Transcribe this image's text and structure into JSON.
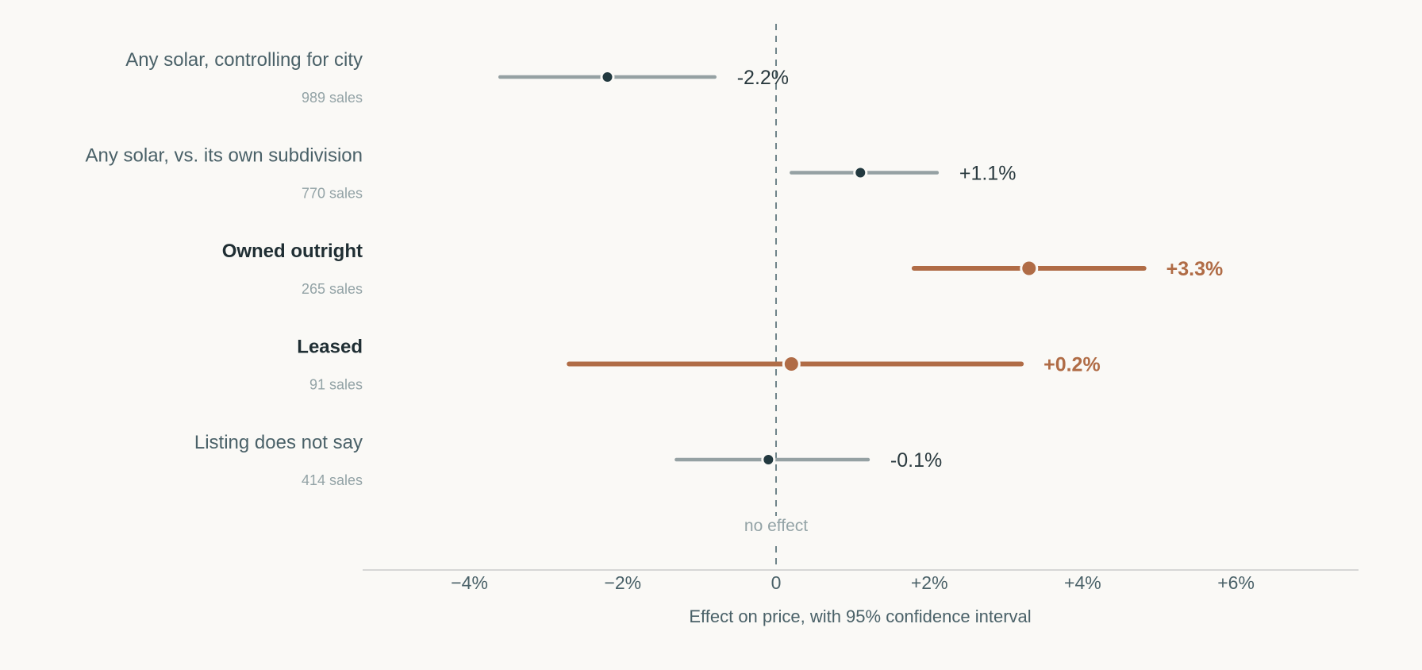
{
  "chart_data": {
    "type": "dot-interval",
    "xlabel": "Effect on price, with 95% confidence interval",
    "xlim": [
      -6.4,
      7.4
    ],
    "x_ticks": [
      {
        "value": -4,
        "label": "−4%"
      },
      {
        "value": -2,
        "label": "−2%"
      },
      {
        "value": 0,
        "label": "0"
      },
      {
        "value": 2,
        "label": "+2%"
      },
      {
        "value": 4,
        "label": "+4%"
      },
      {
        "value": 6,
        "label": "+6%"
      }
    ],
    "zero_line_label": "no effect",
    "rows": [
      {
        "label": "Any solar, controlling for city",
        "sub": "989 sales",
        "estimate": -2.2,
        "ci": [
          -3.6,
          -0.8
        ],
        "value_label": "-2.2%",
        "highlight": false
      },
      {
        "label": "Any solar, vs. its own subdivision",
        "sub": "770 sales",
        "estimate": 1.1,
        "ci": [
          0.2,
          2.1
        ],
        "value_label": "+1.1%",
        "highlight": false
      },
      {
        "label": "Owned outright",
        "sub": "265 sales",
        "estimate": 3.3,
        "ci": [
          1.8,
          4.8
        ],
        "value_label": "+3.3%",
        "highlight": true
      },
      {
        "label": "Leased",
        "sub": "91 sales",
        "estimate": 0.2,
        "ci": [
          -2.7,
          3.2
        ],
        "value_label": "+0.2%",
        "highlight": true
      },
      {
        "label": "Listing does not say",
        "sub": "414 sales",
        "estimate": -0.1,
        "ci": [
          -1.3,
          1.2
        ],
        "value_label": "-0.1%",
        "highlight": false
      }
    ],
    "colors": {
      "highlight": "#b06c46",
      "default_line": "#95a1a3",
      "default_dot": "#22393f",
      "zero_line": "#6f8489",
      "axis": "#c9cccc"
    }
  }
}
